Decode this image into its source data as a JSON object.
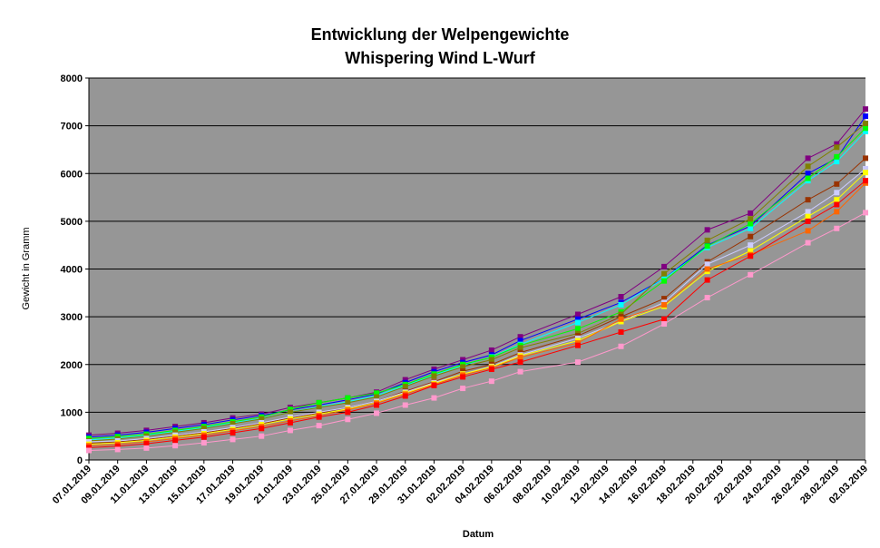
{
  "chart_data": {
    "type": "line",
    "title": "Entwicklung der Welpengewichte",
    "subtitle": "Whispering Wind L-Wurf",
    "x_label": "Datum",
    "y_label": "Gewicht in Gramm",
    "x": [
      "07.01.2019",
      "09.01.2019",
      "11.01.2019",
      "13.01.2019",
      "15.01.2019",
      "17.01.2019",
      "19.01.2019",
      "21.01.2019",
      "23.01.2019",
      "25.01.2019",
      "27.01.2019",
      "29.01.2019",
      "31.01.2019",
      "02.02.2019",
      "04.02.2019",
      "06.02.2019",
      "10.02.2019",
      "13.02.2019",
      "16.02.2019",
      "19.02.2019",
      "22.02.2019",
      "26.02.2019",
      "28.02.2019",
      "02.03.2019"
    ],
    "xlim": [
      "07.01.2019",
      "02.03.2019"
    ],
    "xticks": [
      "07.01.2019",
      "09.01.2019",
      "11.01.2019",
      "13.01.2019",
      "15.01.2019",
      "17.01.2019",
      "19.01.2019",
      "21.01.2019",
      "23.01.2019",
      "25.01.2019",
      "27.01.2019",
      "29.01.2019",
      "31.01.2019",
      "02.02.2019",
      "04.02.2019",
      "06.02.2019",
      "08.02.2019",
      "10.02.2019",
      "12.02.2019",
      "14.02.2019",
      "16.02.2019",
      "18.02.2019",
      "20.02.2019",
      "22.02.2019",
      "24.02.2019",
      "26.02.2019",
      "28.02.2019",
      "02.03.2019"
    ],
    "ylim": [
      0,
      8000
    ],
    "yticks": [
      0,
      1000,
      2000,
      3000,
      4000,
      5000,
      6000,
      7000,
      8000
    ],
    "grid": true,
    "series": [
      {
        "color": "#800080",
        "values": [
          520,
          560,
          620,
          700,
          780,
          880,
          960,
          1100,
          1200,
          1300,
          1420,
          1680,
          1900,
          2100,
          2300,
          2580,
          3050,
          3420,
          4050,
          4820,
          5170,
          6320,
          6620,
          7350
        ]
      },
      {
        "color": "#0000ff",
        "values": [
          480,
          520,
          580,
          660,
          740,
          840,
          930,
          1050,
          1150,
          1260,
          1380,
          1620,
          1850,
          2040,
          2200,
          2500,
          2950,
          3300,
          3800,
          4500,
          4900,
          6000,
          6320,
          7200
        ]
      },
      {
        "color": "#00ffff",
        "values": [
          420,
          460,
          520,
          600,
          680,
          780,
          870,
          1000,
          1120,
          1220,
          1350,
          1560,
          1780,
          1980,
          2160,
          2420,
          2880,
          3250,
          3800,
          4450,
          4850,
          5850,
          6250,
          6880
        ]
      },
      {
        "color": "#00ff00",
        "values": [
          450,
          490,
          540,
          620,
          700,
          800,
          900,
          1060,
          1200,
          1300,
          1400,
          1580,
          1800,
          2000,
          2150,
          2400,
          2750,
          3100,
          3750,
          4480,
          4950,
          5900,
          6350,
          6950
        ]
      },
      {
        "color": "#808000",
        "values": [
          400,
          440,
          500,
          580,
          660,
          760,
          860,
          1000,
          1100,
          1200,
          1320,
          1540,
          1760,
          1950,
          2100,
          2350,
          2650,
          3050,
          3900,
          4600,
          5050,
          6150,
          6550,
          7050
        ]
      },
      {
        "color": "#993300",
        "values": [
          350,
          380,
          430,
          500,
          570,
          660,
          760,
          880,
          980,
          1100,
          1230,
          1440,
          1640,
          1860,
          2000,
          2250,
          2600,
          3000,
          3380,
          4150,
          4680,
          5450,
          5780,
          6320
        ]
      },
      {
        "color": "#ccccff",
        "values": [
          380,
          400,
          450,
          520,
          590,
          680,
          780,
          900,
          1000,
          1100,
          1230,
          1420,
          1620,
          1800,
          1960,
          2200,
          2550,
          2900,
          3300,
          4100,
          4500,
          5200,
          5600,
          6100
        ]
      },
      {
        "color": "#ffff00",
        "values": [
          330,
          360,
          410,
          480,
          550,
          640,
          740,
          860,
          960,
          1070,
          1200,
          1400,
          1600,
          1800,
          1950,
          2180,
          2500,
          2900,
          3220,
          3950,
          4380,
          5100,
          5450,
          6020
        ]
      },
      {
        "color": "#ff6600",
        "values": [
          300,
          330,
          380,
          450,
          520,
          610,
          700,
          820,
          930,
          1050,
          1190,
          1380,
          1580,
          1780,
          1930,
          2150,
          2450,
          2950,
          3250,
          4000,
          4300,
          4800,
          5200,
          5800
        ]
      },
      {
        "color": "#ff0000",
        "values": [
          260,
          290,
          340,
          410,
          480,
          570,
          660,
          780,
          900,
          1000,
          1150,
          1340,
          1560,
          1740,
          1900,
          2050,
          2400,
          2680,
          2950,
          3770,
          4270,
          5000,
          5350,
          5850
        ]
      },
      {
        "color": "#ff99cc",
        "values": [
          200,
          220,
          250,
          300,
          360,
          430,
          500,
          620,
          720,
          850,
          980,
          1150,
          1300,
          1500,
          1650,
          1850,
          2050,
          2380,
          2850,
          3400,
          3880,
          4550,
          4850,
          5180
        ]
      }
    ]
  }
}
